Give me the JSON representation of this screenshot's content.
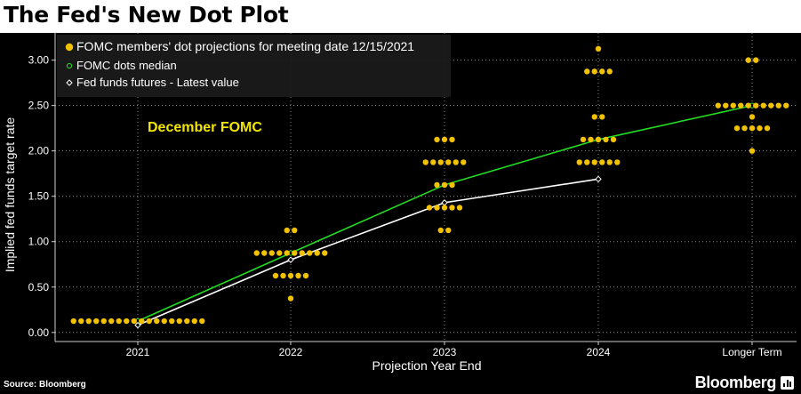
{
  "header": {
    "title": "The Fed's New Dot Plot"
  },
  "footer": {
    "source": "Source: Bloomberg",
    "brand": "Bloomberg"
  },
  "colors": {
    "dots": "#f2c200",
    "median": "#22dd22",
    "futures": "#ffffff",
    "annotation": "#f2e600",
    "grid": "#8a8a8a"
  },
  "chart_data": {
    "type": "scatter",
    "title": "",
    "xlabel": "Projection Year End",
    "ylabel": "Implied fed funds target rate",
    "categories": [
      "2021",
      "2022",
      "2023",
      "2024",
      "Longer Term"
    ],
    "ylim": [
      -0.1,
      3.3
    ],
    "yticks": [
      0.0,
      0.5,
      1.0,
      1.5,
      2.0,
      2.5,
      3.0
    ],
    "ytick_labels": [
      "0.00",
      "0.50",
      "1.00",
      "1.50",
      "2.00",
      "2.50",
      "3.00"
    ],
    "grid": true,
    "legend": {
      "position": "top-left",
      "entries": [
        "FOMC members' dot projections for meeting date 12/15/2021",
        "FOMC dots median",
        "Fed funds futures - Latest value"
      ]
    },
    "annotation": "December FOMC",
    "dots": [
      {
        "category": "2021",
        "levels": [
          {
            "y": 0.125,
            "count": 18
          }
        ]
      },
      {
        "category": "2022",
        "levels": [
          {
            "y": 1.125,
            "count": 2
          },
          {
            "y": 0.875,
            "count": 10
          },
          {
            "y": 0.625,
            "count": 5
          },
          {
            "y": 0.375,
            "count": 1
          }
        ]
      },
      {
        "category": "2023",
        "levels": [
          {
            "y": 2.125,
            "count": 3
          },
          {
            "y": 1.875,
            "count": 6
          },
          {
            "y": 1.625,
            "count": 3
          },
          {
            "y": 1.375,
            "count": 5
          },
          {
            "y": 1.125,
            "count": 2
          }
        ]
      },
      {
        "category": "2024",
        "levels": [
          {
            "y": 3.125,
            "count": 1
          },
          {
            "y": 2.875,
            "count": 4
          },
          {
            "y": 2.375,
            "count": 2
          },
          {
            "y": 2.125,
            "count": 5
          },
          {
            "y": 1.875,
            "count": 6
          }
        ]
      },
      {
        "category": "Longer Term",
        "levels": [
          {
            "y": 3.0,
            "count": 2
          },
          {
            "y": 2.5,
            "count": 10
          },
          {
            "y": 2.375,
            "count": 1
          },
          {
            "y": 2.25,
            "count": 5
          },
          {
            "y": 2.0,
            "count": 1
          }
        ]
      }
    ],
    "series": [
      {
        "name": "FOMC dots median",
        "categories": [
          "2021",
          "2022",
          "2023",
          "2024",
          "Longer Term"
        ],
        "values": [
          0.125,
          0.875,
          1.625,
          2.125,
          2.5
        ]
      },
      {
        "name": "Fed funds futures - Latest value",
        "categories": [
          "2021",
          "2022",
          "2023",
          "2024"
        ],
        "values": [
          0.08,
          0.8,
          1.43,
          1.69
        ]
      }
    ]
  }
}
